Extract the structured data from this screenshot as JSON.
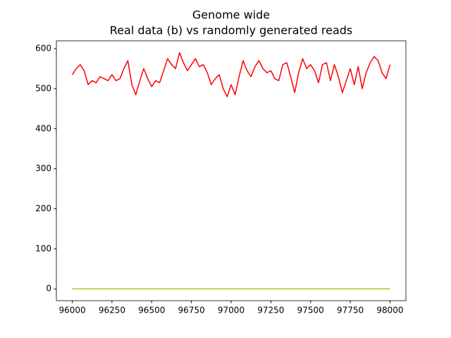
{
  "chart_data": {
    "type": "line",
    "title": "Genome wide",
    "subtitle": "Real data (b) vs randomly generated reads",
    "x": [
      96000,
      96025,
      96050,
      96075,
      96100,
      96125,
      96150,
      96175,
      96200,
      96225,
      96250,
      96275,
      96300,
      96325,
      96350,
      96375,
      96400,
      96425,
      96450,
      96475,
      96500,
      96525,
      96550,
      96575,
      96600,
      96625,
      96650,
      96675,
      96700,
      96725,
      96750,
      96775,
      96800,
      96825,
      96850,
      96875,
      96900,
      96925,
      96950,
      96975,
      97000,
      97025,
      97050,
      97075,
      97100,
      97125,
      97150,
      97175,
      97200,
      97225,
      97250,
      97275,
      97300,
      97325,
      97350,
      97375,
      97400,
      97425,
      97450,
      97475,
      97500,
      97525,
      97550,
      97575,
      97600,
      97625,
      97650,
      97675,
      97700,
      97725,
      97750,
      97775,
      97800,
      97825,
      97850,
      97875,
      97900,
      97925,
      97950,
      97975,
      98000
    ],
    "series": [
      {
        "color": "#ff0000",
        "values": [
          535,
          550,
          560,
          545,
          510,
          520,
          515,
          530,
          525,
          520,
          535,
          520,
          525,
          550,
          570,
          510,
          485,
          520,
          550,
          525,
          505,
          520,
          515,
          545,
          575,
          560,
          550,
          590,
          565,
          545,
          560,
          575,
          555,
          560,
          540,
          510,
          525,
          535,
          500,
          480,
          510,
          485,
          530,
          570,
          545,
          530,
          555,
          570,
          550,
          540,
          545,
          525,
          520,
          560,
          565,
          530,
          490,
          540,
          575,
          550,
          560,
          545,
          515,
          560,
          565,
          520,
          560,
          530,
          490,
          520,
          550,
          510,
          555,
          500,
          540,
          565,
          580,
          570,
          540,
          525,
          560
        ]
      },
      {
        "color": "#bcbd22",
        "values": [
          0,
          0,
          0,
          0,
          0,
          0,
          0,
          0,
          0,
          0,
          0,
          0,
          0,
          0,
          0,
          0,
          0,
          0,
          0,
          0,
          0,
          0,
          0,
          0,
          0,
          0,
          0,
          0,
          0,
          0,
          0,
          0,
          0,
          0,
          0,
          0,
          0,
          0,
          0,
          0,
          0,
          0,
          0,
          0,
          0,
          0,
          0,
          0,
          0,
          0,
          0,
          0,
          0,
          0,
          0,
          0,
          0,
          0,
          0,
          0,
          0,
          0,
          0,
          0,
          0,
          0,
          0,
          0,
          0,
          0,
          0,
          0,
          0,
          0,
          0,
          0,
          0,
          0,
          0,
          0,
          0
        ]
      }
    ],
    "xlim": [
      95900,
      98100
    ],
    "xticks": [
      96000,
      96250,
      96500,
      96750,
      97000,
      97250,
      97500,
      97750,
      98000
    ],
    "ylim": [
      -29.5,
      619.5
    ],
    "yticks": [
      0,
      100,
      200,
      300,
      400,
      500,
      600
    ]
  }
}
